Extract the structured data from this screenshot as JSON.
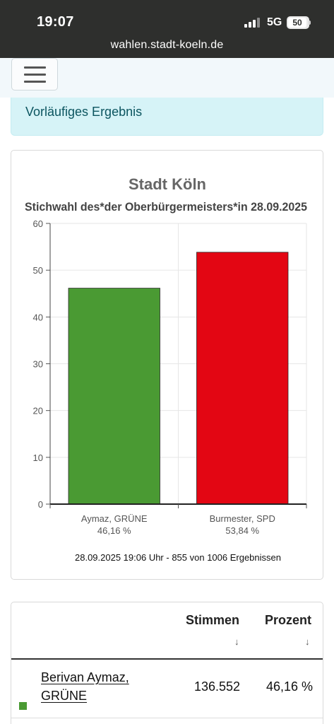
{
  "status_bar": {
    "time": "19:07",
    "network": "5G",
    "battery": "50"
  },
  "browser": {
    "url": "wahlen.stadt-koeln.de"
  },
  "nav": {
    "menu_icon": "hamburger-icon"
  },
  "alert": {
    "text": "Vorläufiges Ergebnis"
  },
  "chart_data": {
    "type": "bar",
    "title": "Stadt Köln",
    "subtitle": "Stichwahl des*der Oberbürgermeisters*in 28.09.2025",
    "categories": [
      "Aymaz, GRÜNE",
      "Burmester, SPD"
    ],
    "category_values_text": [
      "46,16 %",
      "53,84 %"
    ],
    "values": [
      46.16,
      53.84
    ],
    "colors": [
      "#4a9a33",
      "#e30613"
    ],
    "ylim": [
      0,
      60
    ],
    "yticks": [
      0,
      10,
      20,
      30,
      40,
      50,
      60
    ],
    "grid": true,
    "xlabel": "",
    "ylabel": ""
  },
  "chart_footer": "28.09.2025 19:06 Uhr - 855 von 1006 Ergebnissen",
  "results_table": {
    "headers": [
      "Stimmen",
      "Prozent"
    ],
    "sort_icon": "↓",
    "rows": [
      {
        "name": "Berivan Aymaz, GRÜNE",
        "votes": "136.552",
        "percent": "46,16 %",
        "color": "#4a9a33"
      }
    ]
  }
}
